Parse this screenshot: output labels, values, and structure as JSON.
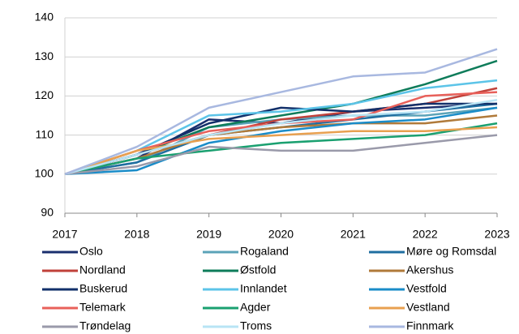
{
  "chart_data": {
    "type": "line",
    "x": [
      2017,
      2018,
      2019,
      2020,
      2021,
      2022,
      2023
    ],
    "xlim": [
      2017,
      2023
    ],
    "xticks": [
      2017,
      2018,
      2019,
      2020,
      2021,
      2022,
      2023
    ],
    "ylim": [
      90,
      140
    ],
    "yticks": [
      90,
      100,
      110,
      120,
      130,
      140
    ],
    "grid": true,
    "series": [
      {
        "name": "Oslo",
        "color": "#1a2f6e",
        "values": [
          100,
          104,
          114,
          113,
          116,
          117,
          118
        ]
      },
      {
        "name": "Rogaland",
        "color": "#5ba3b8",
        "values": [
          100,
          103,
          112,
          114,
          115,
          115,
          117
        ]
      },
      {
        "name": "Møre og Romsdal",
        "color": "#1f6ea0",
        "values": [
          100,
          103,
          110,
          112,
          114,
          116,
          118
        ]
      },
      {
        "name": "Nordland",
        "color": "#c0413a",
        "values": [
          100,
          105,
          110,
          114,
          116,
          118,
          122
        ]
      },
      {
        "name": "Østfold",
        "color": "#0e7c5a",
        "values": [
          100,
          105,
          112,
          115,
          118,
          123,
          129
        ]
      },
      {
        "name": "Akershus",
        "color": "#b07a3a",
        "values": [
          100,
          104,
          110,
          112,
          113,
          113,
          115
        ]
      },
      {
        "name": "Buskerud",
        "color": "#12306a",
        "values": [
          100,
          105,
          113,
          117,
          116,
          118,
          118
        ]
      },
      {
        "name": "Innlandet",
        "color": "#5cc4e8",
        "values": [
          100,
          106,
          115,
          116,
          118,
          122,
          124
        ]
      },
      {
        "name": "Vestfold",
        "color": "#1a8cc8",
        "values": [
          100,
          101,
          108,
          111,
          113,
          114,
          117
        ]
      },
      {
        "name": "Telemark",
        "color": "#e8605a",
        "values": [
          100,
          106,
          111,
          113,
          114,
          120,
          121
        ]
      },
      {
        "name": "Agder",
        "color": "#1aa070",
        "values": [
          100,
          104,
          106,
          108,
          109,
          110,
          113
        ]
      },
      {
        "name": "Vestland",
        "color": "#e8a050",
        "values": [
          100,
          106,
          109,
          110,
          111,
          111,
          112
        ]
      },
      {
        "name": "Trøndelag",
        "color": "#9a9aaa",
        "values": [
          100,
          102,
          107,
          106,
          106,
          108,
          110
        ]
      },
      {
        "name": "Troms",
        "color": "#b8e4f4",
        "values": [
          100,
          105,
          110,
          113,
          115,
          116,
          119
        ]
      },
      {
        "name": "Finnmark",
        "color": "#a8b8e0",
        "values": [
          100,
          107,
          117,
          121,
          125,
          126,
          132
        ]
      }
    ]
  }
}
